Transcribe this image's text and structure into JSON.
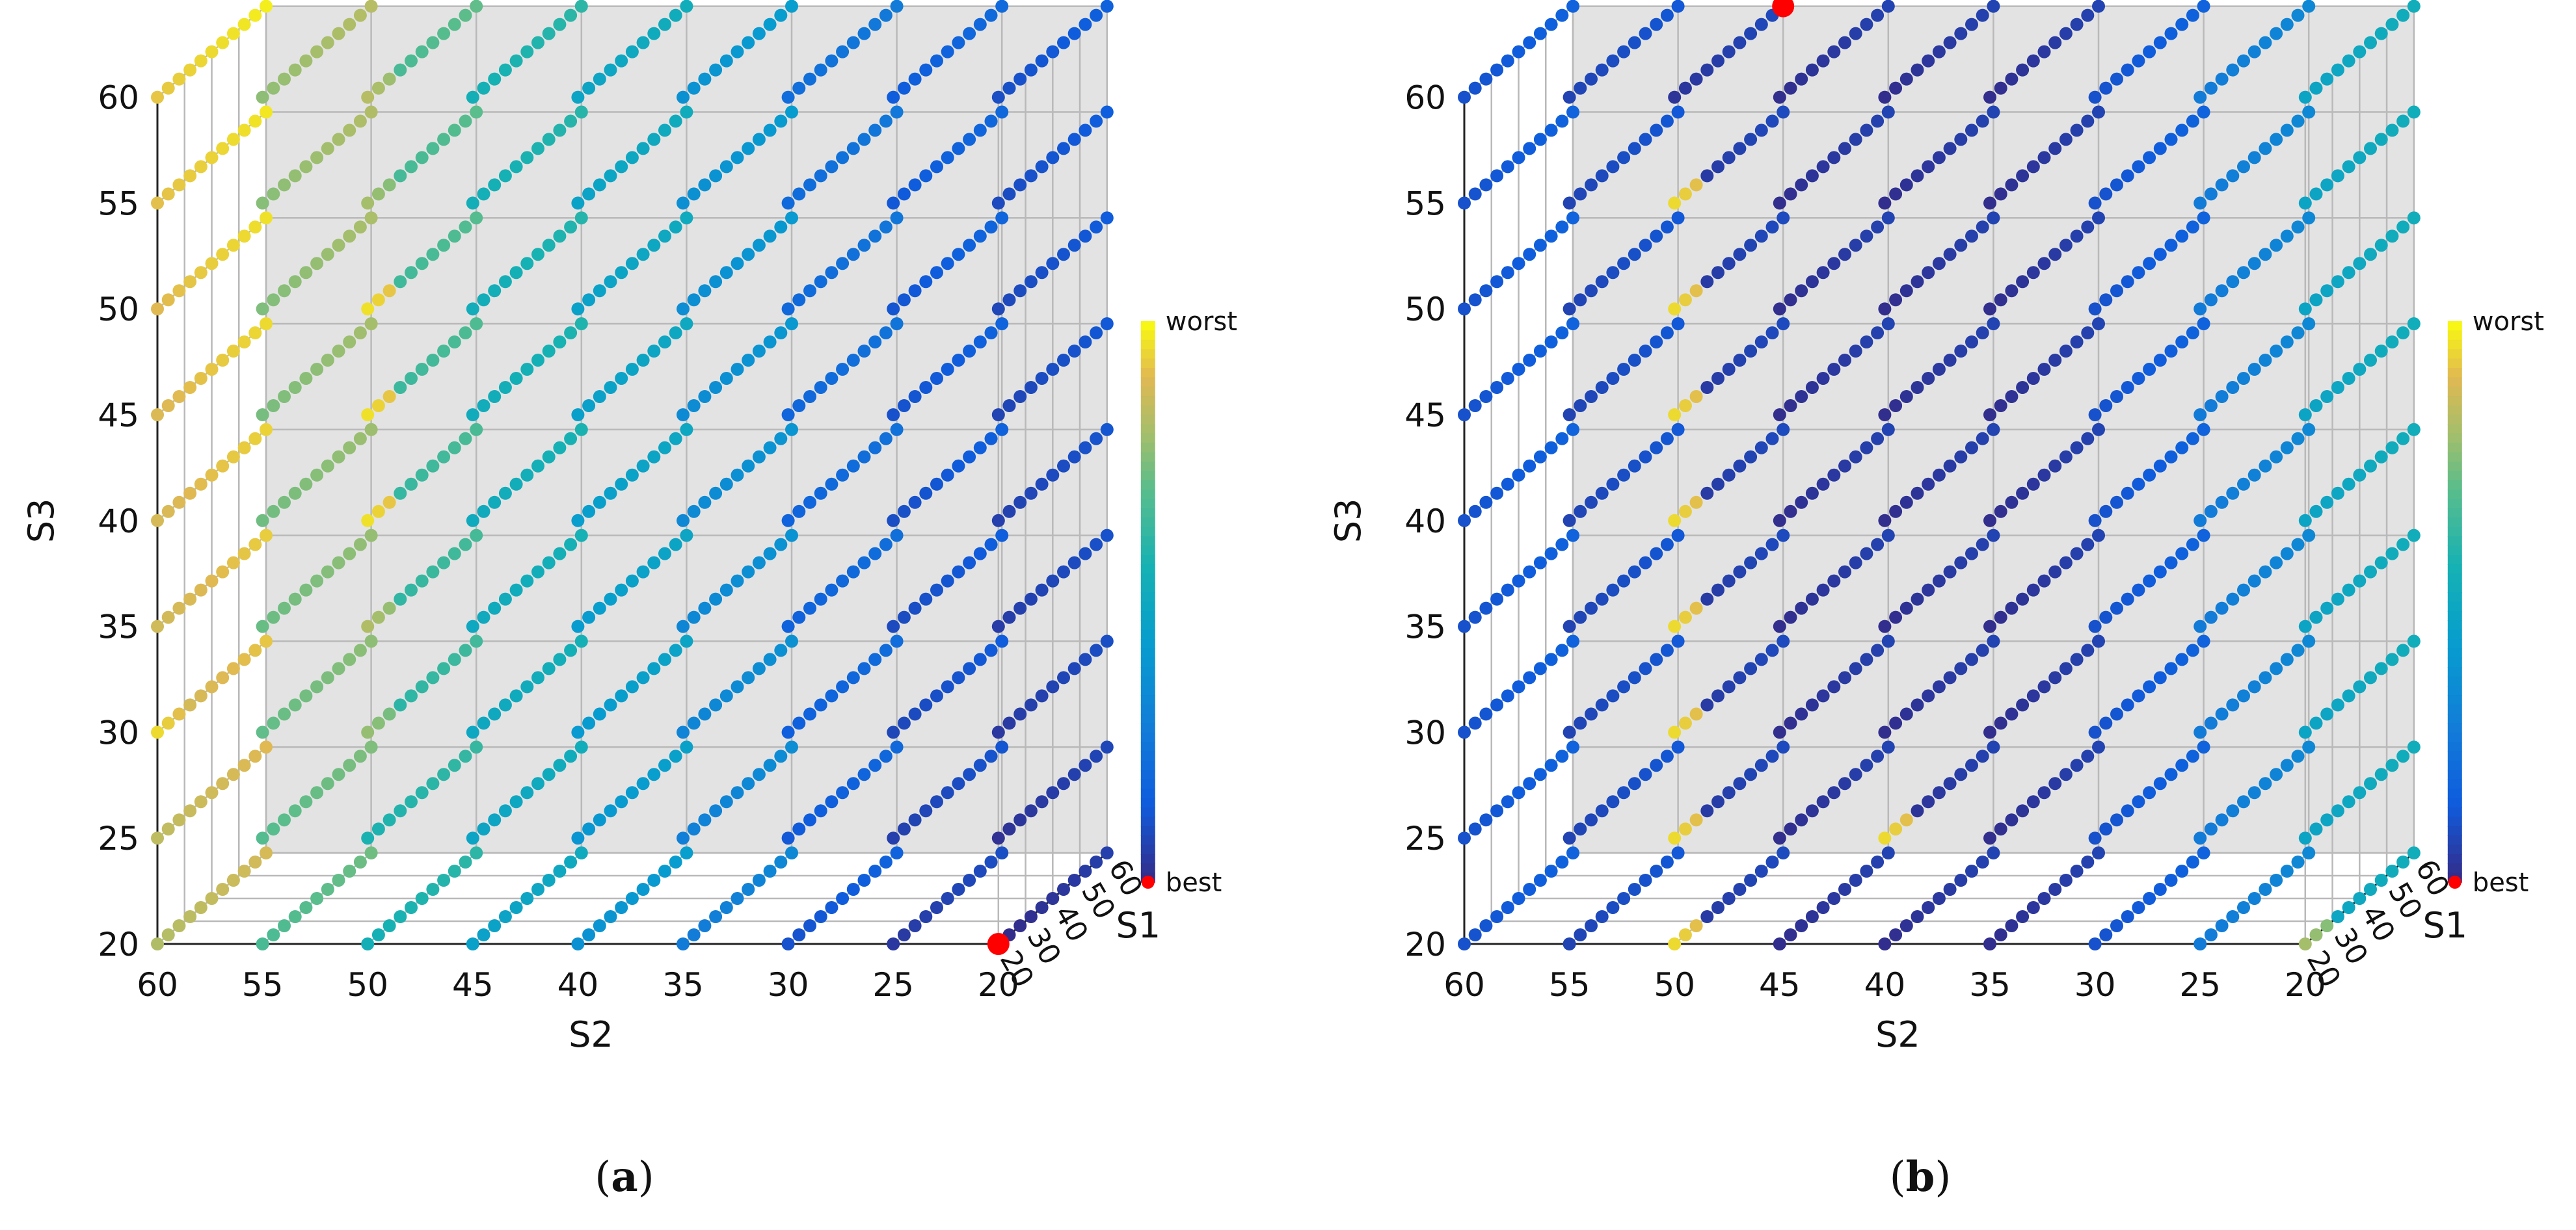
{
  "chart_data": [
    {
      "type": "scatter",
      "subtype": "3d-grid",
      "panel_label": "a",
      "xlabel": "S2",
      "ylabel": "S3",
      "zlabel": "S1",
      "x_ticks": [
        60,
        55,
        50,
        45,
        40,
        35,
        30,
        25,
        20
      ],
      "y_ticks": [
        20,
        25,
        30,
        35,
        40,
        45,
        50,
        55,
        60
      ],
      "z_ticks": [
        20,
        30,
        40,
        50,
        60
      ],
      "z_points_per_line": 11,
      "colorbar": {
        "top_label": "worst",
        "bottom_label": "best"
      },
      "best_point": {
        "S1": 20,
        "S2": 20,
        "S3": 20
      },
      "color_scale_by_S2": {
        "60": 0.85,
        "55": 0.7,
        "50": 0.58,
        "45": 0.48,
        "40": 0.4,
        "35": 0.3,
        "30": 0.14,
        "25": 0.07,
        "20": 0.03
      },
      "s3_shift": {
        "20": 0.0,
        "25": 0.02,
        "30": 0.04,
        "35": 0.05,
        "40": 0.06,
        "45": 0.07,
        "50": 0.08,
        "55": 0.09,
        "60": 0.1
      },
      "highlights": [
        {
          "S2": 50,
          "S3": 60,
          "value": 0.83
        },
        {
          "S2": 50,
          "S3": 55,
          "value": 0.8
        },
        {
          "S2": 50,
          "S3": 50,
          "value": 0.96
        },
        {
          "S2": 50,
          "S3": 45,
          "value": 0.96
        },
        {
          "S2": 50,
          "S3": 40,
          "value": 0.96
        },
        {
          "S2": 50,
          "S3": 35,
          "value": 0.82
        },
        {
          "S2": 50,
          "S3": 30,
          "value": 0.78
        },
        {
          "S2": 60,
          "S3": 30,
          "value": 0.95
        }
      ]
    },
    {
      "type": "scatter",
      "subtype": "3d-grid",
      "panel_label": "b",
      "xlabel": "S2",
      "ylabel": "S3",
      "zlabel": "S1",
      "x_ticks": [
        60,
        55,
        50,
        45,
        40,
        35,
        30,
        25,
        20
      ],
      "y_ticks": [
        20,
        25,
        30,
        35,
        40,
        45,
        50,
        55,
        60
      ],
      "z_ticks": [
        20,
        30,
        40,
        50,
        60
      ],
      "z_points_per_line": 11,
      "colorbar": {
        "top_label": "worst",
        "bottom_label": "best"
      },
      "best_point": {
        "S1": 60,
        "S2": 50,
        "S3": 60
      },
      "color_scale_by_S2": {
        "60": 0.14,
        "55": 0.1,
        "50": 0.06,
        "45": 0.04,
        "40": 0.04,
        "35": 0.04,
        "30": 0.14,
        "25": 0.3,
        "20": 0.5
      },
      "s3_shift": {
        "20": 0.0,
        "25": 0.0,
        "30": 0.0,
        "35": 0.0,
        "40": 0.0,
        "45": 0.0,
        "50": 0.0,
        "55": 0.0,
        "60": 0.0
      },
      "highlights": [
        {
          "S2": 50,
          "S3": 20,
          "value": 0.95
        },
        {
          "S2": 50,
          "S3": 25,
          "value": 0.95
        },
        {
          "S2": 50,
          "S3": 30,
          "value": 0.95
        },
        {
          "S2": 50,
          "S3": 35,
          "value": 0.95
        },
        {
          "S2": 50,
          "S3": 40,
          "value": 0.95
        },
        {
          "S2": 50,
          "S3": 45,
          "value": 0.95
        },
        {
          "S2": 50,
          "S3": 50,
          "value": 0.95
        },
        {
          "S2": 50,
          "S3": 55,
          "value": 0.95
        },
        {
          "S2": 40,
          "S3": 25,
          "value": 0.95
        },
        {
          "S2": 20,
          "S3": 20,
          "value": 0.8
        }
      ]
    }
  ]
}
